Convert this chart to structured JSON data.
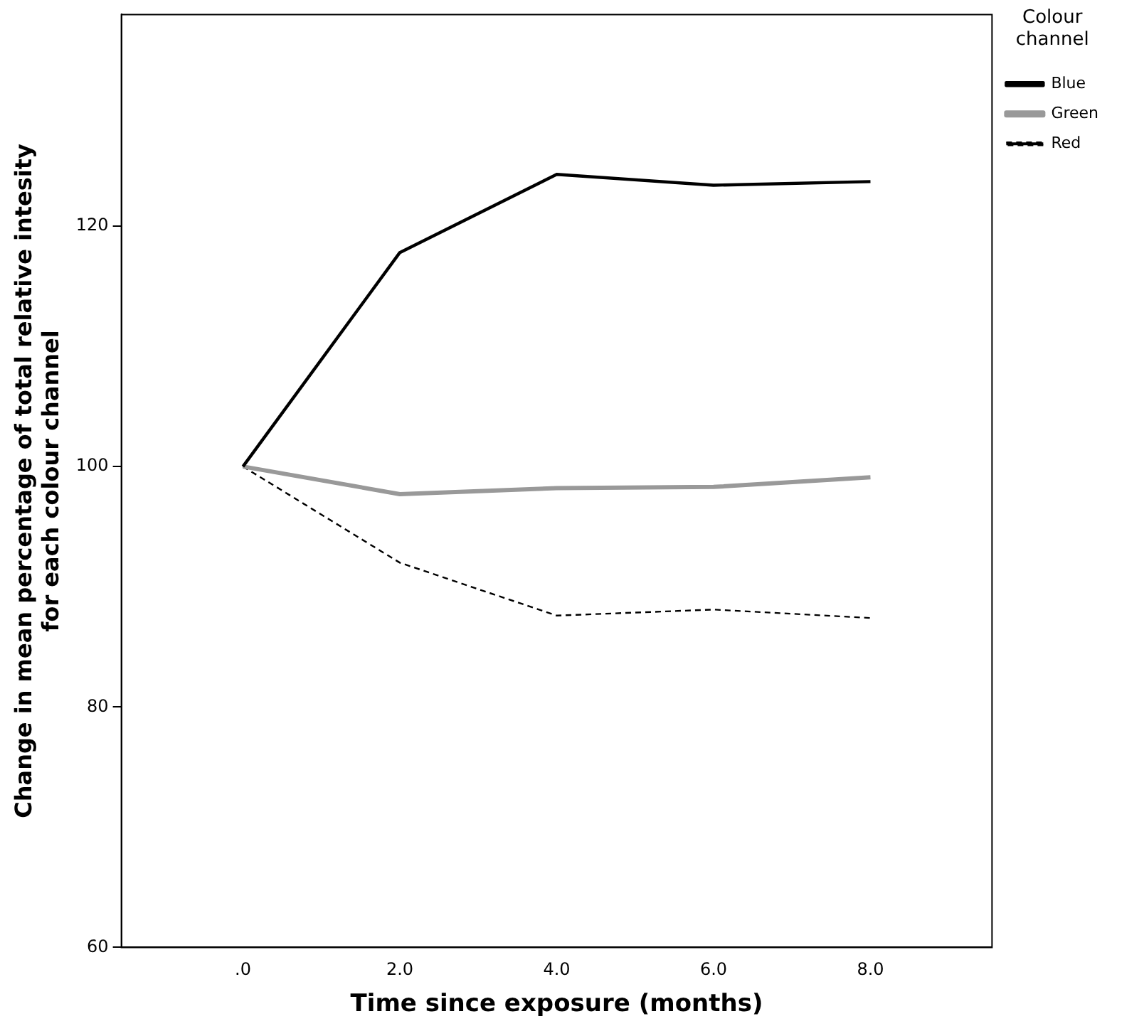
{
  "chart_data": {
    "type": "line",
    "xlabel": "Time since exposure (months)",
    "ylabel": "Change in mean percentage of total relative intesity\nfor each colour channel",
    "legend_title": "Colour channel",
    "legend": "top right",
    "grid": false,
    "marker": "none",
    "x": [
      0,
      2,
      4,
      6,
      8
    ],
    "xlim": [
      -1.55,
      9.55
    ],
    "xticks": [
      {
        "value": 0,
        "label": ".0"
      },
      {
        "value": 2,
        "label": "2.0"
      },
      {
        "value": 4,
        "label": "4.0"
      },
      {
        "value": 6,
        "label": "6.0"
      },
      {
        "value": 8,
        "label": "8.0"
      }
    ],
    "ylim": [
      60,
      137.6
    ],
    "yticks": [
      60,
      80,
      100,
      120
    ],
    "series": [
      {
        "name": "Blue",
        "color": "#000000",
        "line_style": "solid",
        "values": [
          100,
          117.8,
          124.3,
          123.4,
          123.7
        ]
      },
      {
        "name": "Green",
        "color": "#999999",
        "line_style": "solid",
        "values": [
          100,
          97.7,
          98.2,
          98.3,
          99.1
        ]
      },
      {
        "name": "Red",
        "color": "#000000",
        "line_style": "dashed",
        "values": [
          100,
          92.0,
          87.6,
          88.1,
          87.4
        ]
      }
    ]
  }
}
